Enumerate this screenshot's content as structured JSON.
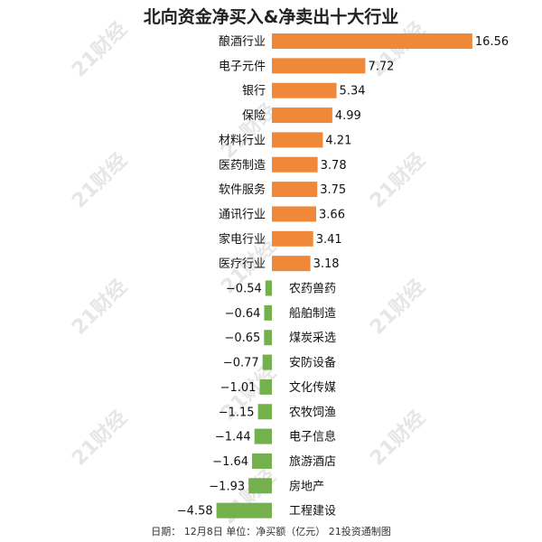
{
  "chart_data": {
    "type": "bar",
    "orientation": "horizontal",
    "title": "北向资金净买入&净卖出十大行业",
    "categories": [
      "酿酒行业",
      "电子元件",
      "银行",
      "保险",
      "材料行业",
      "医药制造",
      "软件服务",
      "通讯行业",
      "家电行业",
      "医疗行业",
      "农药兽药",
      "船舶制造",
      "煤炭采选",
      "安防设备",
      "文化传媒",
      "农牧饲渔",
      "电子信息",
      "旅游酒店",
      "房地产",
      "工程建设"
    ],
    "values": [
      16.56,
      7.72,
      5.34,
      4.99,
      4.21,
      3.78,
      3.75,
      3.66,
      3.41,
      3.18,
      -0.54,
      -0.64,
      -0.65,
      -0.77,
      -1.01,
      -1.15,
      -1.44,
      -1.64,
      -1.93,
      -4.58
    ],
    "value_labels": [
      "16.56",
      "7.72",
      "5.34",
      "4.99",
      "4.21",
      "3.78",
      "3.75",
      "3.66",
      "3.41",
      "3.18",
      "−0.54",
      "−0.64",
      "−0.65",
      "−0.77",
      "−1.01",
      "−1.15",
      "−1.44",
      "−1.64",
      "−1.93",
      "−4.58"
    ],
    "colors": {
      "positive": "#f0883a",
      "negative": "#74b04c"
    },
    "grid": false,
    "legend": "none"
  },
  "footer": "日期：  12月8日  单位：净买额（亿元）  21投资通制图",
  "watermark": "21财经"
}
